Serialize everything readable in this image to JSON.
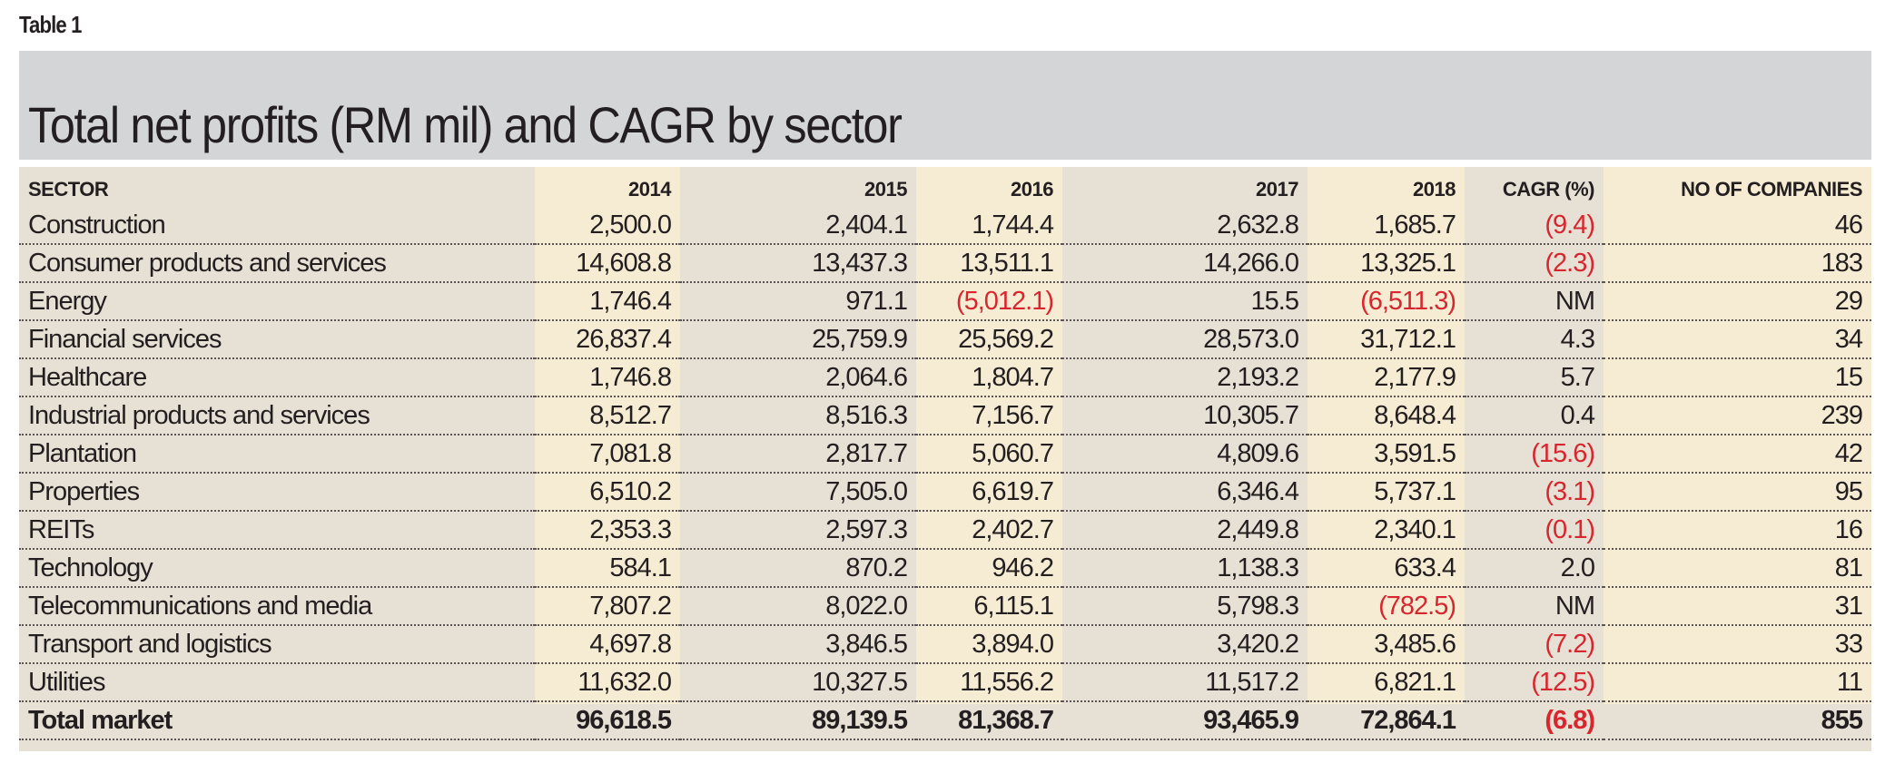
{
  "table_label": "Table 1",
  "title": "Total net profits (RM mil) and CAGR by sector",
  "colors": {
    "title_band": "#d4d5d7",
    "table_band": "#e7e0d5",
    "highlight_column": "#f6ecd4",
    "negative": "#d7262e",
    "text": "#231f20"
  },
  "columns": [
    "SECTOR",
    "2014",
    "2015",
    "2016",
    "2017",
    "2018",
    "CAGR (%)",
    "NO OF COMPANIES"
  ],
  "rows": [
    {
      "sector": "Construction",
      "values": [
        "2,500.0",
        "2,404.1",
        "1,744.4",
        "2,632.8",
        "1,685.7"
      ],
      "cagr": "(9.4)",
      "companies": "46"
    },
    {
      "sector": "Consumer products and services",
      "values": [
        "14,608.8",
        "13,437.3",
        "13,511.1",
        "14,266.0",
        "13,325.1"
      ],
      "cagr": "(2.3)",
      "companies": "183"
    },
    {
      "sector": "Energy",
      "values": [
        "1,746.4",
        "971.1",
        "(5,012.1)",
        "15.5",
        "(6,511.3)"
      ],
      "cagr": "NM",
      "companies": "29"
    },
    {
      "sector": "Financial services",
      "values": [
        "26,837.4",
        "25,759.9",
        "25,569.2",
        "28,573.0",
        "31,712.1"
      ],
      "cagr": "4.3",
      "companies": "34"
    },
    {
      "sector": "Healthcare",
      "values": [
        "1,746.8",
        "2,064.6",
        "1,804.7",
        "2,193.2",
        "2,177.9"
      ],
      "cagr": "5.7",
      "companies": "15"
    },
    {
      "sector": "Industrial products and services",
      "values": [
        "8,512.7",
        "8,516.3",
        "7,156.7",
        "10,305.7",
        "8,648.4"
      ],
      "cagr": "0.4",
      "companies": "239"
    },
    {
      "sector": "Plantation",
      "values": [
        "7,081.8",
        "2,817.7",
        "5,060.7",
        "4,809.6",
        "3,591.5"
      ],
      "cagr": "(15.6)",
      "companies": "42"
    },
    {
      "sector": "Properties",
      "values": [
        "6,510.2",
        "7,505.0",
        "6,619.7",
        "6,346.4",
        "5,737.1"
      ],
      "cagr": "(3.1)",
      "companies": "95"
    },
    {
      "sector": "REITs",
      "values": [
        "2,353.3",
        "2,597.3",
        "2,402.7",
        "2,449.8",
        "2,340.1"
      ],
      "cagr": "(0.1)",
      "companies": "16"
    },
    {
      "sector": "Technology",
      "values": [
        "584.1",
        "870.2",
        "946.2",
        "1,138.3",
        "633.4"
      ],
      "cagr": "2.0",
      "companies": "81"
    },
    {
      "sector": "Telecommunications and media",
      "values": [
        "7,807.2",
        "8,022.0",
        "6,115.1",
        "5,798.3",
        "(782.5)"
      ],
      "cagr": "NM",
      "companies": "31"
    },
    {
      "sector": "Transport and logistics",
      "values": [
        "4,697.8",
        "3,846.5",
        "3,894.0",
        "3,420.2",
        "3,485.6"
      ],
      "cagr": "(7.2)",
      "companies": "33"
    },
    {
      "sector": "Utilities",
      "values": [
        "11,632.0",
        "10,327.5",
        "11,556.2",
        "11,517.2",
        "6,821.1"
      ],
      "cagr": "(12.5)",
      "companies": "11"
    }
  ],
  "total": {
    "sector": "Total market",
    "values": [
      "96,618.5",
      "89,139.5",
      "81,368.7",
      "93,465.9",
      "72,864.1"
    ],
    "cagr": "(6.8)",
    "companies": "855"
  },
  "chart_data": {
    "type": "table",
    "title": "Total net profits (RM mil) and CAGR by sector",
    "columns": [
      "SECTOR",
      "2014",
      "2015",
      "2016",
      "2017",
      "2018",
      "CAGR (%)",
      "NO OF COMPANIES"
    ],
    "rows": [
      [
        "Construction",
        2500.0,
        2404.1,
        1744.4,
        2632.8,
        1685.7,
        -9.4,
        46
      ],
      [
        "Consumer products and services",
        14608.8,
        13437.3,
        13511.1,
        14266.0,
        13325.1,
        -2.3,
        183
      ],
      [
        "Energy",
        1746.4,
        971.1,
        -5012.1,
        15.5,
        -6511.3,
        "NM",
        29
      ],
      [
        "Financial services",
        26837.4,
        25759.9,
        25569.2,
        28573.0,
        31712.1,
        4.3,
        34
      ],
      [
        "Healthcare",
        1746.8,
        2064.6,
        1804.7,
        2193.2,
        2177.9,
        5.7,
        15
      ],
      [
        "Industrial products and services",
        8512.7,
        8516.3,
        7156.7,
        10305.7,
        8648.4,
        0.4,
        239
      ],
      [
        "Plantation",
        7081.8,
        2817.7,
        5060.7,
        4809.6,
        3591.5,
        -15.6,
        42
      ],
      [
        "Properties",
        6510.2,
        7505.0,
        6619.7,
        6346.4,
        5737.1,
        -3.1,
        95
      ],
      [
        "REITs",
        2353.3,
        2597.3,
        2402.7,
        2449.8,
        2340.1,
        -0.1,
        16
      ],
      [
        "Technology",
        584.1,
        870.2,
        946.2,
        1138.3,
        633.4,
        2.0,
        81
      ],
      [
        "Telecommunications and media",
        7807.2,
        8022.0,
        6115.1,
        5798.3,
        -782.5,
        "NM",
        31
      ],
      [
        "Transport and logistics",
        4697.8,
        3846.5,
        3894.0,
        3420.2,
        3485.6,
        -7.2,
        33
      ],
      [
        "Utilities",
        11632.0,
        10327.5,
        11556.2,
        11517.2,
        6821.1,
        -12.5,
        11
      ],
      [
        "Total market",
        96618.5,
        89139.5,
        81368.7,
        93465.9,
        72864.1,
        -6.8,
        855
      ]
    ]
  }
}
